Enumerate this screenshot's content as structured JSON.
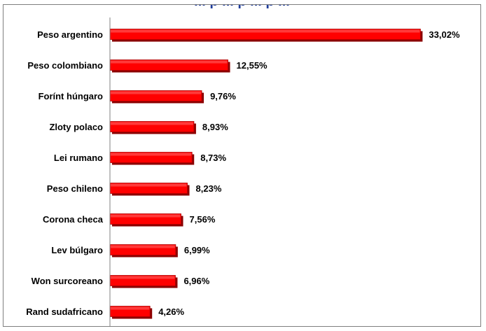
{
  "title_fragment": "... p ... p ... p ...",
  "chart_data": {
    "type": "bar",
    "orientation": "horizontal",
    "title": "",
    "categories": [
      "Peso argentino",
      "Peso colombiano",
      "Forínt húngaro",
      "Zloty polaco",
      "Lei rumano",
      "Peso chileno",
      "Corona checa",
      "Lev búlgaro",
      "Won surcoreano",
      "Rand sudafricano"
    ],
    "values": [
      33.02,
      12.55,
      9.76,
      8.93,
      8.73,
      8.23,
      7.56,
      6.99,
      6.96,
      4.26
    ],
    "value_labels": [
      "33,02%",
      "12,55%",
      "9,76%",
      "8,93%",
      "8,73%",
      "8,23%",
      "7,56%",
      "6,99%",
      "6,96%",
      "4,26%"
    ],
    "xlabel": "",
    "ylabel": "",
    "xlim": [
      0,
      35
    ],
    "grid": false,
    "legend": "none",
    "bar_color": "#ff0000",
    "bar_shadow_color": "#8b0000"
  }
}
